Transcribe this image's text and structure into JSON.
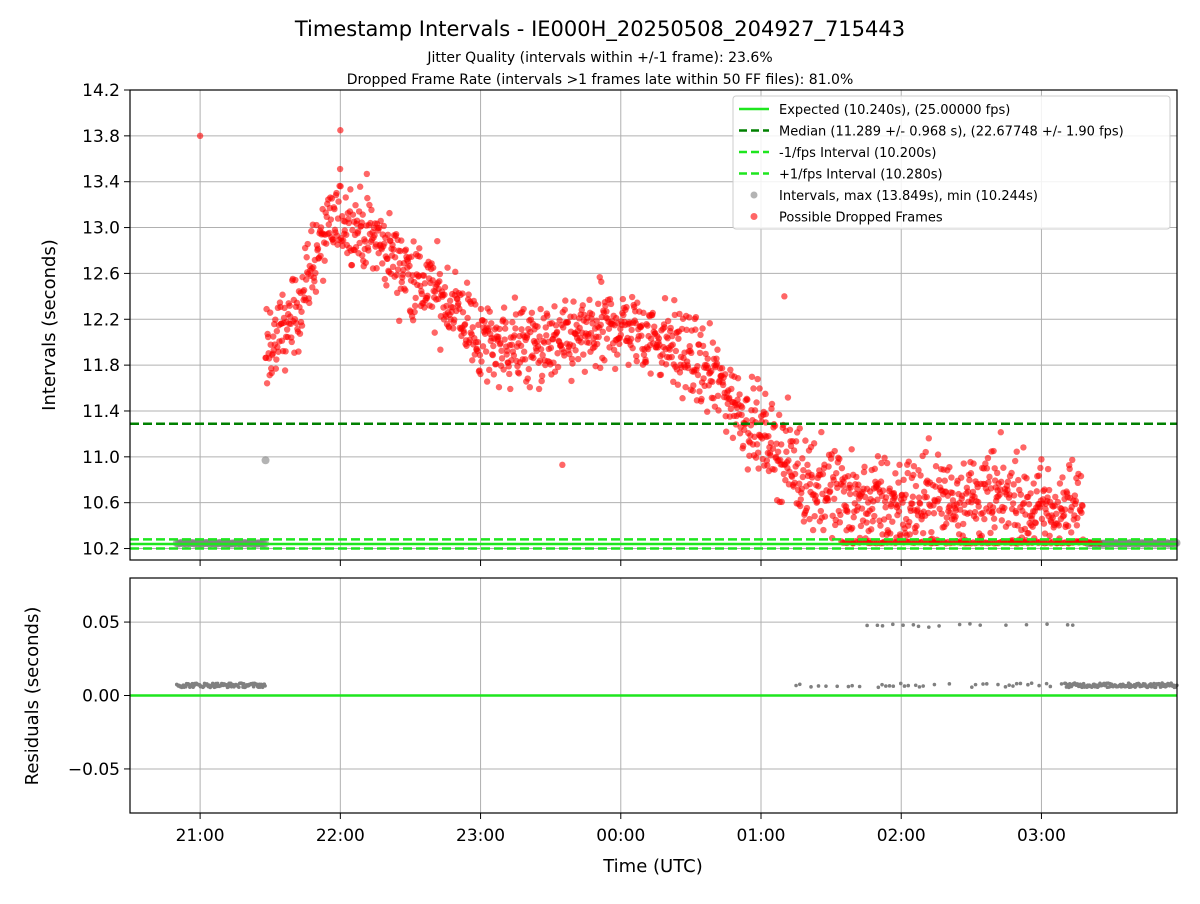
{
  "title": "Timestamp Intervals - IE000H_20250508_204927_715443",
  "subtitle1": "Jitter Quality (intervals within +/-1 frame): 23.6%",
  "subtitle2": "Dropped Frame Rate (intervals >1 frames late within 50 FF files): 81.0%",
  "colors": {
    "expected": "#1ee61e",
    "median": "#008000",
    "interval_line": "#1ee61e",
    "grey_points": "#808080",
    "red_points": "#ff0000",
    "grid": "#b0b0b0"
  },
  "chart_data": [
    {
      "type": "scatter",
      "panel": "intervals",
      "ylabel": "Intervals (seconds)",
      "ylim": [
        10.1,
        14.2
      ],
      "yticks": [
        "10.2",
        "10.6",
        "11.0",
        "11.4",
        "11.8",
        "12.2",
        "12.6",
        "13.0",
        "13.4",
        "13.8",
        "14.2"
      ],
      "xlim": [
        "20:30",
        "03:58"
      ],
      "xticks": [
        "21:00",
        "22:00",
        "23:00",
        "00:00",
        "01:00",
        "02:00",
        "03:00"
      ],
      "grid": true,
      "legend_position": "top-right",
      "lines": [
        {
          "name": "Expected (10.240s), (25.00000 fps)",
          "y": 10.24,
          "style": "solid",
          "color": "#1ee61e"
        },
        {
          "name": "Median (11.289 +/- 0.968 s), (22.67748 +/- 1.90 fps)",
          "y": 11.289,
          "style": "dashed",
          "color": "#008000"
        },
        {
          "name": "-1/fps Interval (10.200s)",
          "y": 10.2,
          "style": "dashed",
          "color": "#1ee61e"
        },
        {
          "name": "+1/fps Interval (10.280s)",
          "y": 10.28,
          "style": "dashed",
          "color": "#1ee61e"
        }
      ],
      "series": [
        {
          "name": "Intervals, max (13.849s), min (10.244s)",
          "color": "#808080",
          "segments": [
            {
              "t0": "20:50",
              "t1": "21:28",
              "y": 10.245
            },
            {
              "t0": "03:20",
              "t1": "03:58",
              "y": 10.245
            }
          ],
          "points": [
            [
              "21:28",
              10.97
            ]
          ]
        },
        {
          "name": "Possible Dropped Frames",
          "color": "#ff0000",
          "trend": [
            [
              "21:28",
              11.9
            ],
            [
              "21:40",
              12.2
            ],
            [
              "21:50",
              12.8
            ],
            [
              "22:00",
              13.1
            ],
            [
              "22:15",
              12.9
            ],
            [
              "22:35",
              12.5
            ],
            [
              "22:50",
              12.3
            ],
            [
              "23:00",
              12.0
            ],
            [
              "23:30",
              11.95
            ],
            [
              "00:00",
              12.15
            ],
            [
              "00:20",
              12.0
            ],
            [
              "00:40",
              11.7
            ],
            [
              "01:00",
              11.2
            ],
            [
              "01:20",
              10.8
            ],
            [
              "01:40",
              10.6
            ],
            [
              "02:00",
              10.6
            ],
            [
              "02:30",
              10.65
            ],
            [
              "03:00",
              10.55
            ],
            [
              "03:18",
              10.5
            ]
          ],
          "highlights": [
            [
              "21:00",
              13.8,
              "upper"
            ],
            [
              "22:00",
              13.849,
              "max"
            ],
            [
              "23:35",
              10.93,
              "low"
            ],
            [
              "01:02",
              11.3,
              "mid"
            ],
            [
              "01:10",
              12.4,
              "upper"
            ],
            [
              "02:40",
              10.9,
              "mid"
            ]
          ]
        }
      ]
    },
    {
      "type": "scatter",
      "panel": "residuals",
      "xlabel": "Time (UTC)",
      "ylabel": "Residuals (seconds)",
      "ylim": [
        -0.08,
        0.08
      ],
      "yticks": [
        "−0.05",
        "0.00",
        "0.05"
      ],
      "xticks": [
        "21:00",
        "22:00",
        "23:00",
        "00:00",
        "01:00",
        "02:00",
        "03:00"
      ],
      "grid": true,
      "lines": [
        {
          "y": 0.0,
          "style": "solid",
          "color": "#1ee61e"
        }
      ],
      "series": [
        {
          "name": "residuals",
          "color": "#808080",
          "bands": [
            {
              "t0": "20:50",
              "t1": "21:28",
              "y": 0.007
            },
            {
              "t0": "03:10",
              "t1": "03:58",
              "y": 0.007
            }
          ],
          "sparse_low": {
            "t0": "01:15",
            "t1": "03:10",
            "y": 0.007
          },
          "sparse_high": {
            "t0": "01:30",
            "t1": "03:15",
            "y": 0.048
          }
        }
      ]
    }
  ]
}
